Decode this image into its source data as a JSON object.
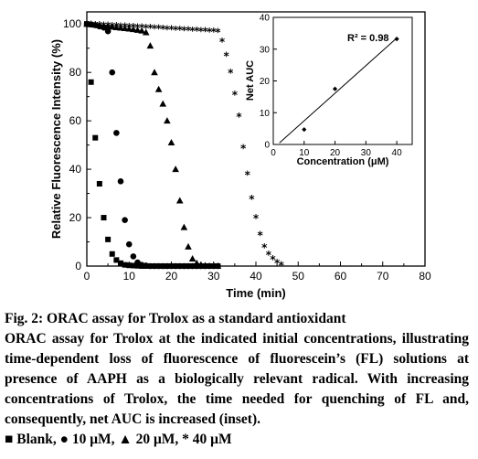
{
  "chart_data": [
    {
      "type": "scatter",
      "xlabel": "Time (min)",
      "ylabel": "Relative Fluorescence Intensity (%)",
      "xlim": [
        0,
        80
      ],
      "ylim": [
        0,
        105
      ],
      "xticks": [
        "0",
        "10",
        "20",
        "30",
        "40",
        "50",
        "60",
        "70",
        "80"
      ],
      "yticks": [
        "0",
        "20",
        "40",
        "60",
        "80",
        "100"
      ],
      "grid": false,
      "series": [
        {
          "name": "Blank",
          "marker": "square",
          "x": [
            0,
            1,
            2,
            3,
            4,
            5,
            6,
            7,
            8,
            9,
            10,
            11,
            12,
            13,
            14,
            15,
            16,
            17,
            18,
            19,
            20,
            21,
            22,
            23,
            24,
            25,
            26,
            27,
            28,
            29,
            30,
            31
          ],
          "y": [
            100,
            76,
            53,
            34,
            20,
            11,
            5,
            2.5,
            1.2,
            0.5,
            0.3,
            0.2,
            0.1,
            0,
            0,
            0,
            0,
            0,
            0,
            0,
            0,
            0,
            0,
            0,
            0,
            0,
            0,
            0,
            0,
            0,
            0,
            0
          ]
        },
        {
          "name": "10 μM",
          "marker": "circle",
          "x": [
            0,
            1,
            2,
            3,
            4,
            5,
            6,
            7,
            8,
            9,
            10,
            11,
            12,
            13,
            14,
            15,
            16,
            17,
            18,
            19,
            20,
            21,
            22,
            23,
            24,
            25,
            26,
            27,
            28,
            29,
            30,
            31
          ],
          "y": [
            100,
            99.8,
            99.5,
            99,
            98.5,
            97,
            80,
            55,
            35,
            19,
            9,
            4,
            1.5,
            0.5,
            0.2,
            0,
            0,
            0,
            0,
            0,
            0,
            0,
            0,
            0,
            0,
            0,
            0,
            0,
            0,
            0,
            0,
            0
          ]
        },
        {
          "name": "20 μM",
          "marker": "triangle",
          "x": [
            0,
            1,
            2,
            3,
            4,
            5,
            6,
            7,
            8,
            9,
            10,
            11,
            12,
            13,
            14,
            15,
            16,
            17,
            18,
            19,
            20,
            21,
            22,
            23,
            24,
            25,
            26,
            27,
            28,
            29,
            30,
            31
          ],
          "y": [
            100,
            99.8,
            99.6,
            99.4,
            99.2,
            99,
            98.8,
            98.6,
            98.4,
            98.2,
            98,
            97.8,
            97.5,
            97.2,
            96.5,
            91,
            80,
            73,
            67,
            60,
            51,
            40,
            27,
            16,
            8,
            3,
            1.2,
            0.5,
            0.2,
            0,
            0,
            0
          ]
        },
        {
          "name": "40 μM",
          "marker": "star",
          "x": [
            0,
            1,
            2,
            3,
            4,
            5,
            6,
            7,
            8,
            9,
            10,
            11,
            12,
            13,
            14,
            15,
            16,
            17,
            18,
            19,
            20,
            21,
            22,
            23,
            24,
            25,
            26,
            27,
            28,
            29,
            30,
            31,
            32,
            33,
            34,
            35,
            36,
            37,
            38,
            39,
            40,
            41,
            42,
            43,
            44,
            45,
            46
          ],
          "y": [
            100,
            99.9,
            99.8,
            99.7,
            99.6,
            99.5,
            99.4,
            99.3,
            99.2,
            99.1,
            99,
            98.9,
            98.8,
            98.7,
            98.6,
            98.5,
            98.4,
            98.3,
            98.2,
            98.1,
            98,
            97.9,
            97.8,
            97.7,
            97.6,
            97.5,
            97.4,
            97.3,
            97.2,
            97.1,
            97,
            96.8,
            93,
            87,
            80,
            71,
            62,
            49,
            38,
            28,
            20,
            13,
            8,
            5,
            3,
            1.5,
            0.5
          ]
        }
      ]
    },
    {
      "type": "scatter",
      "inset": true,
      "xlabel": "Concentration (μM)",
      "ylabel": "Net AUC",
      "xlim": [
        0,
        45
      ],
      "ylim": [
        0,
        40
      ],
      "xticks": [
        "0",
        "10",
        "20",
        "30",
        "40"
      ],
      "yticks": [
        "0",
        "10",
        "20",
        "30",
        "40"
      ],
      "annotation": "R² = 0.98",
      "series": [
        {
          "marker": "diamond",
          "x": [
            10,
            20,
            40
          ],
          "y": [
            4.7,
            17.5,
            33.2
          ]
        }
      ],
      "fit_line": {
        "x": [
          2,
          40
        ],
        "y": [
          0.5,
          33.5
        ]
      }
    }
  ],
  "caption": {
    "line1": "Fig. 2: ORAC assay for Trolox as a standard antioxidant",
    "body": "ORAC assay for Trolox at the indicated initial concentrations, illustrating time-dependent loss of fluorescence of fluorescein’s (FL) solutions at presence of AAPH as a biologically relevant radical. With increasing concentrations of Trolox, the time needed for quenching of FL and, consequently, net AUC is increased (inset).",
    "legend": "■ Blank, ● 10 μM, ▲ 20 μM, * 40 μM"
  }
}
